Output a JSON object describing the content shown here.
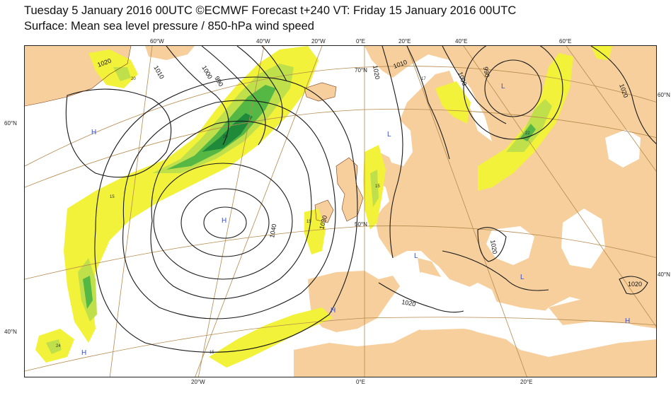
{
  "header": {
    "line1": "Tuesday 5 January 2016 00UTC ©ECMWF Forecast t+240 VT: Friday 15 January 2016 00UTC",
    "line2": "Surface: Mean sea level pressure / 850-hPa wind speed"
  },
  "colors": {
    "land": "#f6cf9c",
    "sea": "#ffffff",
    "wind_15_20": "#f2f23a",
    "wind_20_25": "#bfe04a",
    "wind_25_30": "#55b844",
    "wind_30_plus": "#1f8a3a",
    "isobar": "#1a1a1a",
    "graticule": "#b58a4e",
    "pressure_center": "#3a50c8",
    "coast": "#7a3a1a"
  },
  "graticule_labels": {
    "top": [
      "60°W",
      "40°W",
      "20°W",
      "0°E",
      "20°E",
      "40°E",
      "60°E"
    ],
    "bottom": [
      "20°W",
      "0°E",
      "20°E"
    ],
    "left": [
      "60°N",
      "40°N"
    ],
    "right": [
      "60°N",
      "40°N"
    ],
    "inner": [
      "50°N",
      "70°N"
    ]
  },
  "pressure_centers": [
    "H",
    "H",
    "H",
    "H",
    "L",
    "L",
    "L",
    "L",
    "H"
  ],
  "isobar_labels": [
    "1020",
    "1010",
    "1000",
    "990",
    "1040",
    "1030",
    "1020",
    "1010",
    "1000",
    "990",
    "1020",
    "1020",
    "1020",
    "1020"
  ],
  "wind_labels": [
    "15",
    "15",
    "15",
    "20",
    "24",
    "15",
    "20",
    "17",
    "22"
  ]
}
